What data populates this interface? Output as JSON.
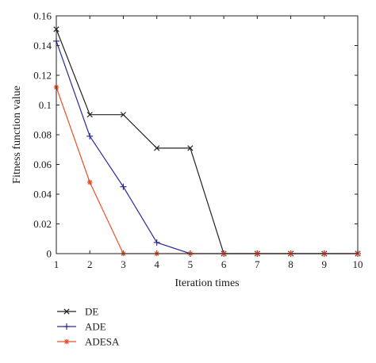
{
  "chart_data": {
    "type": "line",
    "xlabel": "Iteration times",
    "ylabel": "Fitness function value",
    "xlim": [
      1,
      10
    ],
    "ylim": [
      0,
      0.16
    ],
    "xticks": [
      "1",
      "2",
      "3",
      "4",
      "5",
      "6",
      "7",
      "8",
      "9",
      "10"
    ],
    "yticks": [
      "0",
      "0.02",
      "0.04",
      "0.06",
      "0.08",
      "0.1",
      "0.12",
      "0.14",
      "0.16"
    ],
    "grid": false,
    "legend_position": "bottom-left, below plot",
    "x": [
      1,
      2,
      3,
      4,
      5,
      6,
      7,
      8,
      9,
      10
    ],
    "series": [
      {
        "name": "DE",
        "color": "#222222",
        "marker": "x",
        "values": [
          0.151,
          0.0935,
          0.0935,
          0.071,
          0.071,
          0,
          0,
          0,
          0,
          0
        ]
      },
      {
        "name": "ADE",
        "color": "#2b2b9a",
        "marker": "plus",
        "values": [
          0.143,
          0.079,
          0.045,
          0.0075,
          0,
          0,
          0,
          0,
          0,
          0
        ]
      },
      {
        "name": "ADESA",
        "color": "#e8502a",
        "marker": "star",
        "values": [
          0.112,
          0.048,
          0,
          0,
          0,
          0,
          0,
          0,
          0,
          0
        ]
      }
    ]
  }
}
